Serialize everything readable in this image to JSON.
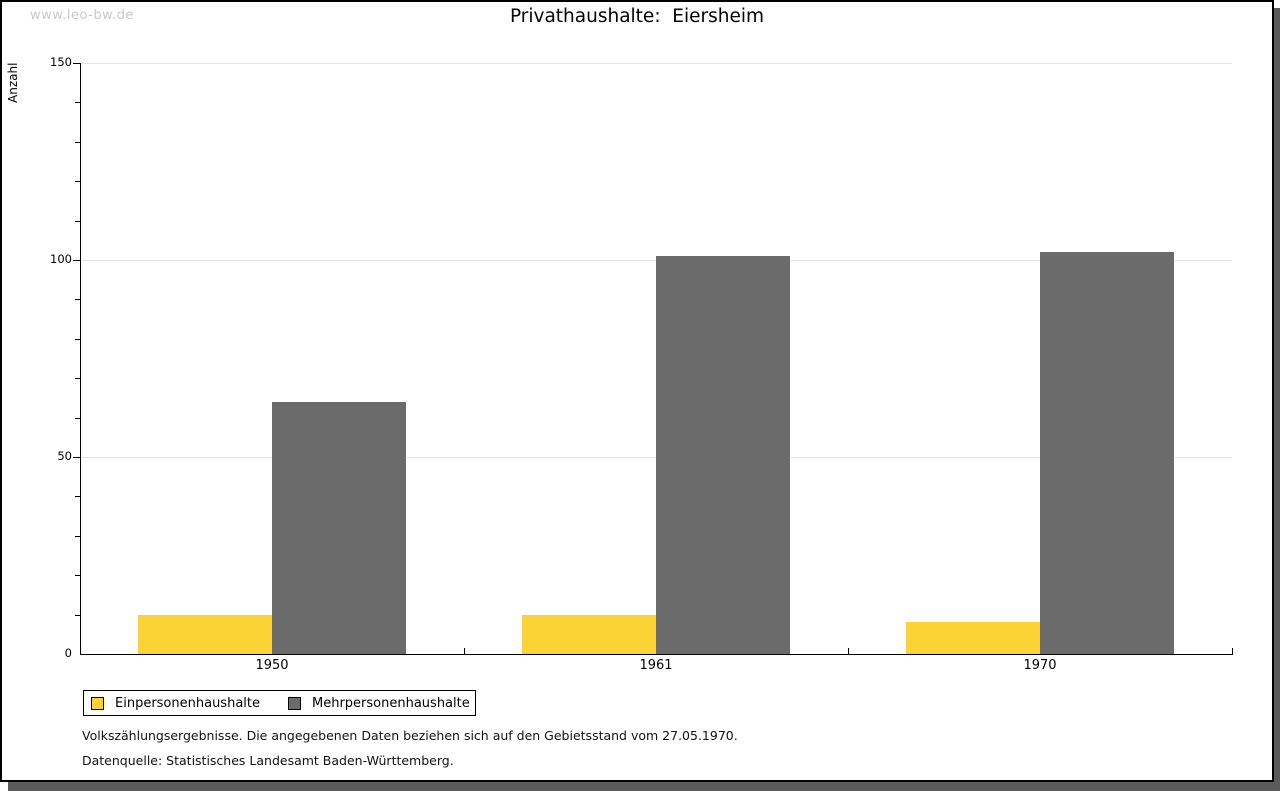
{
  "watermark": "www.leo-bw.de",
  "chart_data": {
    "type": "bar",
    "title": "Privathaushalte:  Eiersheim",
    "xlabel": "",
    "ylabel": "Anzahl",
    "categories": [
      "1950",
      "1961",
      "1970"
    ],
    "series": [
      {
        "name": "Einpersonenhaushalte",
        "color": "#FBD335",
        "values": [
          10,
          10,
          8
        ]
      },
      {
        "name": "Mehrpersonenhaushalte",
        "color": "#6B6B6B",
        "values": [
          64,
          101,
          102
        ]
      }
    ],
    "ylim": [
      0,
      150
    ],
    "yticks": [
      0,
      50,
      100,
      150
    ],
    "minor_tick_step": 10,
    "grid": true,
    "legend_position": "bottom-left"
  },
  "footnotes": [
    "Volkszählungsergebnisse. Die angegebenen Daten beziehen sich auf den Gebietsstand vom 27.05.1970.",
    "Datenquelle: Statistisches Landesamt Baden-Württemberg."
  ],
  "colors": {
    "bar_einpersonen": "#FBD335",
    "bar_mehrpersonen": "#6B6B6B",
    "gridline": "#E4E4E4",
    "axis": "#000000",
    "watermark": "#C9C9C9",
    "shadow": "#5A5A5A",
    "background": "#FFFFFF"
  }
}
